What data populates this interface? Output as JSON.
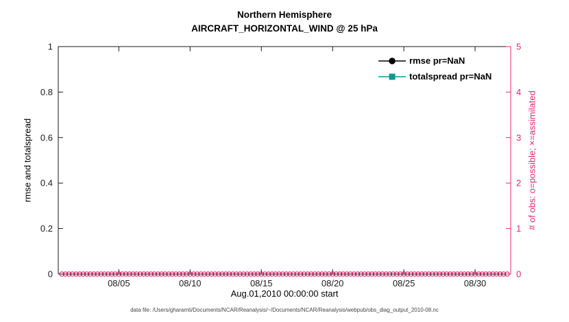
{
  "caption": "data file: /Users/gharamti/Documents/NCAR/Reanalysis/~/Documents/NCAR/Reanalysis/webpub/obs_diag_output_2010-08.nc",
  "chart_data": {
    "type": "line",
    "title": "Northern Hemisphere",
    "subtitle": "AIRCRAFT_HORIZONTAL_WIND @ 25 hPa",
    "xlabel": "Aug.01,2010 00:00:00 start",
    "ylabel_left": "rmse and totalspread",
    "ylabel_right": "# of obs: o=possible; ×=assimilated",
    "ylim_left": [
      0,
      1
    ],
    "ylim_right": [
      0,
      5
    ],
    "yticks_left": [
      0,
      0.2,
      0.4,
      0.6,
      0.8,
      1
    ],
    "yticks_right": [
      0,
      1,
      2,
      3,
      4,
      5
    ],
    "xtick_labels": [
      "08/05",
      "08/10",
      "08/15",
      "08/20",
      "08/25",
      "08/30"
    ],
    "xtick_days": [
      4,
      9,
      14,
      19,
      24,
      29
    ],
    "x_range_days": [
      -0.25,
      31.5
    ],
    "grid": false,
    "legend_position": "top-right-inside",
    "colors": {
      "axis": "#1a1a1a"
    },
    "series": [
      {
        "name": "rmse pr=NaN",
        "color": "#000000",
        "marker": "circle",
        "values": "NaN"
      },
      {
        "name": "totalspread pr=NaN",
        "color": "#149690",
        "marker": "square",
        "values": "NaN"
      },
      {
        "name": "# of obs possible",
        "color": "#e02870",
        "marker": "o",
        "axis": "right",
        "value": 0,
        "days_start": 0,
        "days_end": 31.25,
        "step_days": 0.25
      }
    ]
  }
}
